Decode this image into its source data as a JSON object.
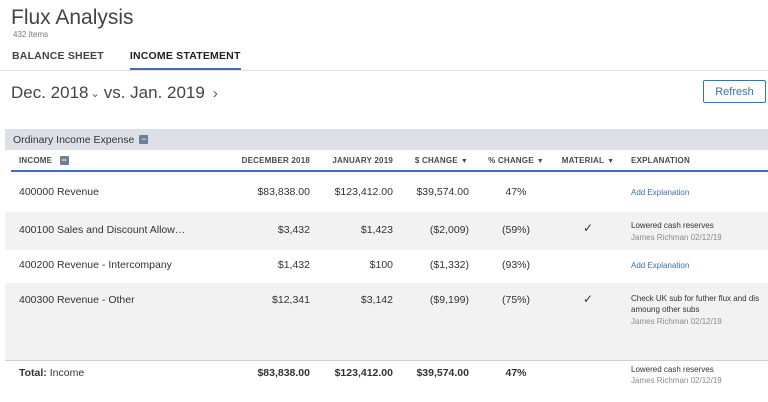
{
  "header": {
    "title": "Flux Analysis",
    "item_count": "432 Items"
  },
  "tabs": [
    {
      "label": "BALANCE SHEET",
      "active": false
    },
    {
      "label": "INCOME STATEMENT",
      "active": true
    }
  ],
  "period": {
    "from": "Dec. 2018",
    "vs": "vs. Jan. 2019"
  },
  "toolbar": {
    "refresh_label": "Refresh"
  },
  "section": {
    "label": "Ordinary Income Expense"
  },
  "columns": {
    "income": "INCOME",
    "dec": "DECEMBER 2018",
    "jan": "JANUARY 2019",
    "dchange": "$ CHANGE",
    "pchange": "% CHANGE",
    "material": "MATERIAL",
    "explanation": "EXPLANATION"
  },
  "rows": [
    {
      "name": "400000 Revenue",
      "dec": "$83,838.00",
      "jan": "$123,412.00",
      "dchange": "$39,574.00",
      "pchange": "47%",
      "material": "",
      "link": "Add Explanation"
    },
    {
      "name": "400100 Sales and Discount Allow…",
      "dec": "$3,432",
      "jan": "$1,423",
      "dchange": "($2,009)",
      "pchange": "(59%)",
      "material": "✓",
      "expl_text": "Lowered cash reserves",
      "expl_meta": "James Richman 02/12/19"
    },
    {
      "name": "400200 Revenue - Intercompany",
      "dec": "$1,432",
      "jan": "$100",
      "dchange": "($1,332)",
      "pchange": "(93%)",
      "material": "",
      "link": "Add Explanation"
    },
    {
      "name": "400300 Revenue - Other",
      "dec": "$12,341",
      "jan": "$3,142",
      "dchange": "($9,199)",
      "pchange": "(75%)",
      "material": "✓",
      "expl_line1": "Check UK sub for futher flux and dis",
      "expl_line2": "amoung other subs",
      "expl_meta": "James Richman 02/12/19"
    }
  ],
  "total": {
    "label_bold": "Total:",
    "label": "Income",
    "dec": "$83,838.00",
    "jan": "$123,412.00",
    "dchange": "$39,574.00",
    "pchange": "47%",
    "expl_text": "Lowered cash reserves",
    "expl_meta": "James Richman 02/12/19"
  },
  "icons": {
    "chevron_down": "chevron-down-icon",
    "chevron_right": "chevron-right-icon",
    "collapse": "minus-square-icon",
    "sort": "caret-down-icon",
    "check": "checkmark-icon"
  },
  "colors": {
    "accent": "#3d6fb6",
    "section_bg": "#dde1e7",
    "row_alt": "#f2f2f2"
  }
}
